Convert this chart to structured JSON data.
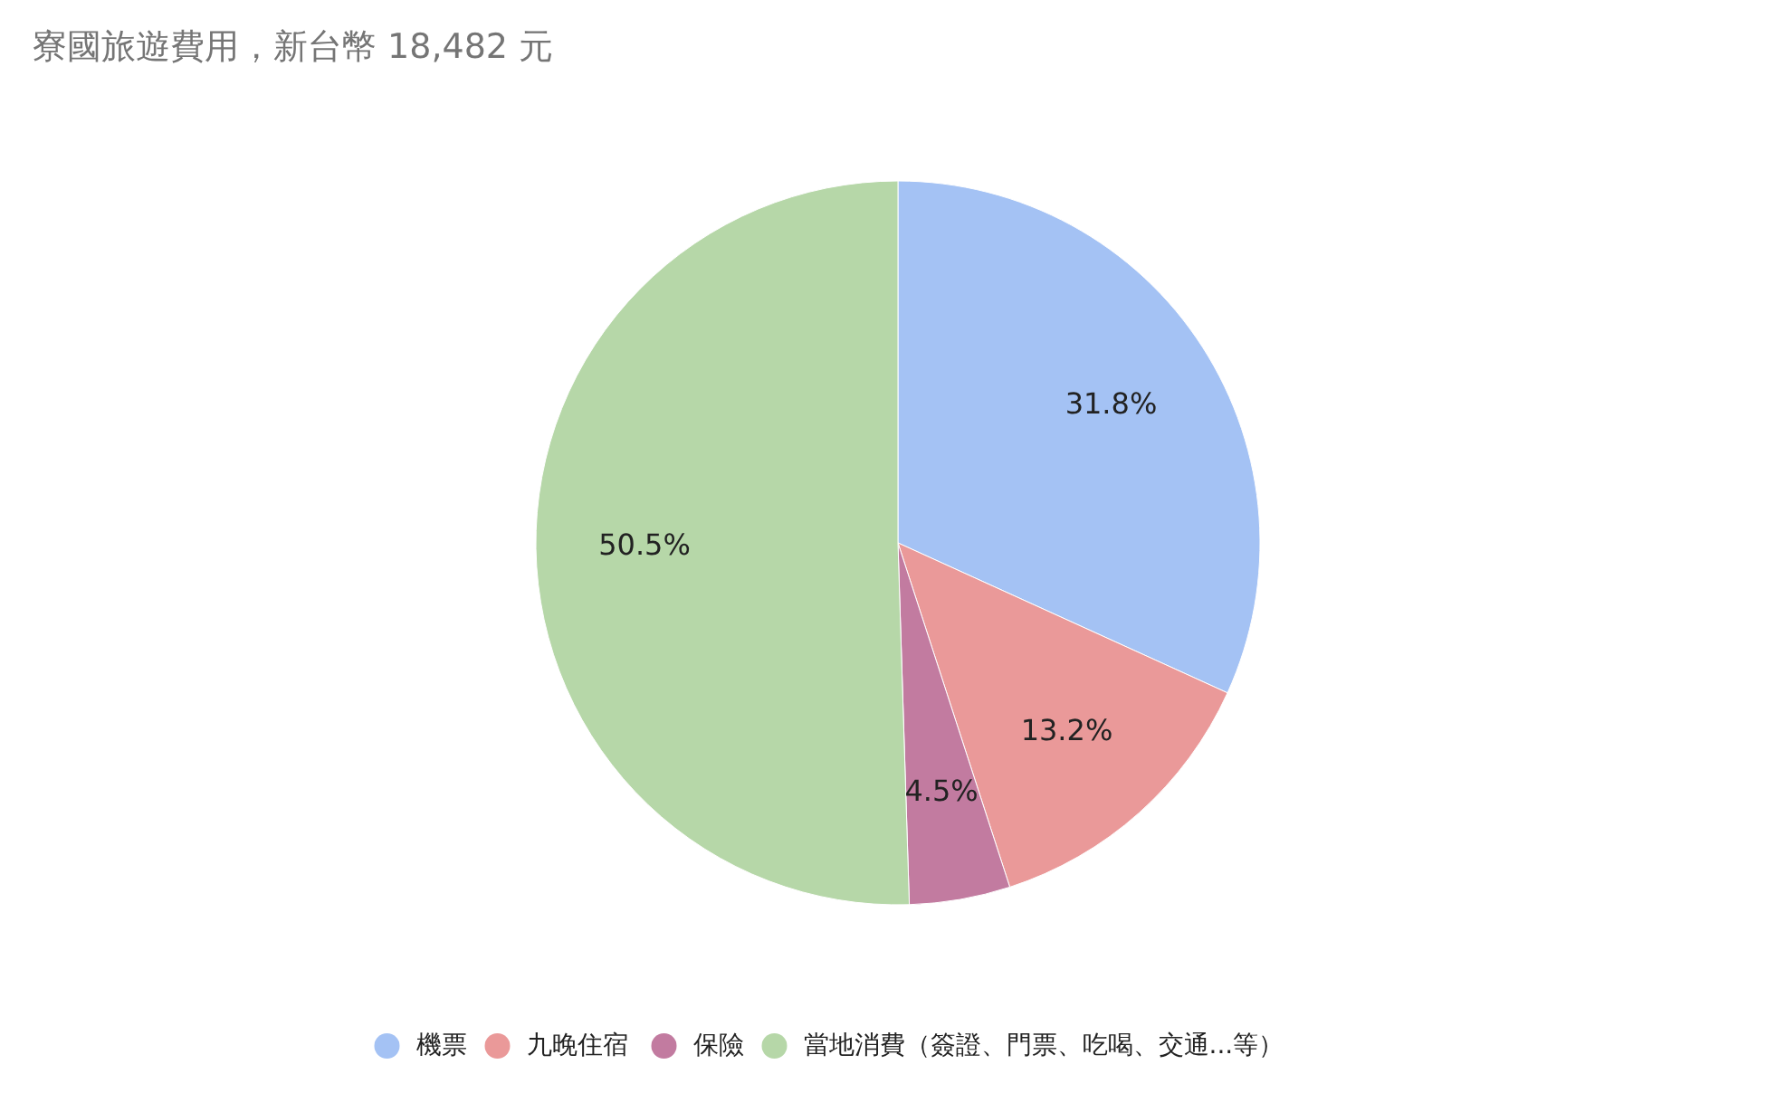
{
  "chart_data": {
    "type": "pie",
    "title": "寮國旅遊費用，新台幣 18,482 元",
    "categories": [
      "機票",
      "九晚住宿",
      "保險",
      "當地消費（簽證、門票、吃喝、交通...等）"
    ],
    "values": [
      31.8,
      13.2,
      4.5,
      50.5
    ],
    "colors": [
      "#a4c2f4",
      "#ea9999",
      "#c27ba0",
      "#b6d7a8"
    ],
    "value_labels": [
      "31.8%",
      "13.2%",
      "4.5%",
      "50.5%"
    ],
    "legend": "bottom"
  }
}
